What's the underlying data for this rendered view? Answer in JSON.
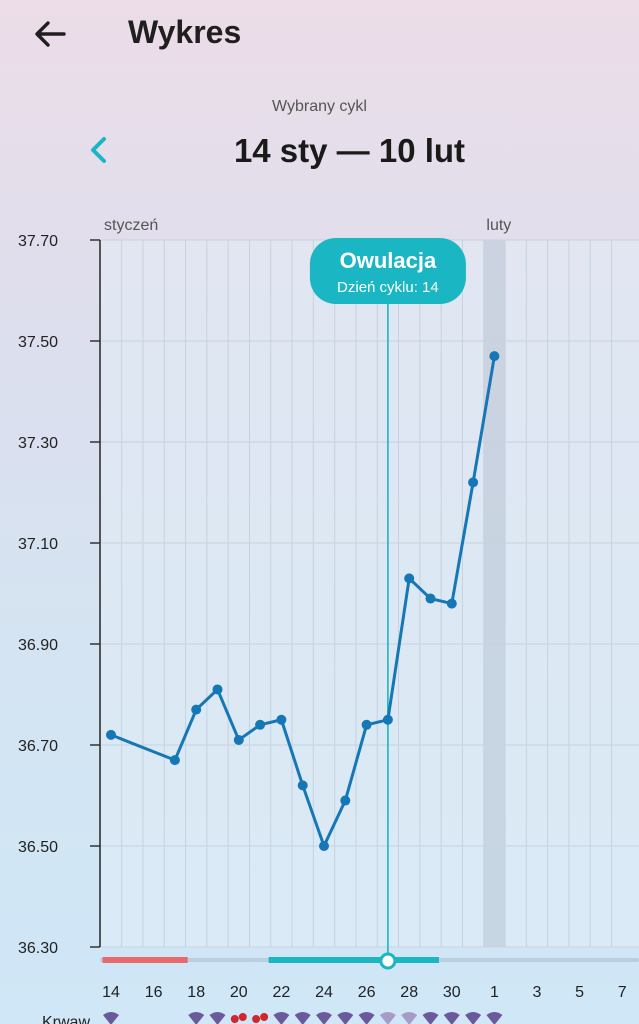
{
  "header": {
    "title": "Wykres",
    "back_icon": "arrow-left-icon"
  },
  "cycle": {
    "label": "Wybrany cykl",
    "range": "14 sty — 10 lut",
    "prev_icon": "chevron-left-icon",
    "accent": "#1ab6c4"
  },
  "legend_partial": {
    "label": "Krwaw."
  },
  "chart_data": {
    "type": "line",
    "title": "",
    "ylabel": "",
    "ylim": [
      36.3,
      37.7
    ],
    "y_ticks": [
      "37.70",
      "37.50",
      "37.30",
      "37.10",
      "36.90",
      "36.70",
      "36.50",
      "36.30"
    ],
    "month_labels": [
      {
        "text": "styczeń",
        "day": 14
      },
      {
        "text": "luty",
        "day": 32
      }
    ],
    "x_tick_labels": [
      "14",
      "16",
      "18",
      "20",
      "22",
      "24",
      "26",
      "28",
      "30",
      "1",
      "3",
      "5",
      "7"
    ],
    "series": [
      {
        "color": "#1577b5",
        "points": [
          {
            "day": 14,
            "temp": 36.72
          },
          {
            "day": 17,
            "temp": 36.67
          },
          {
            "day": 18,
            "temp": 36.77
          },
          {
            "day": 19,
            "temp": 36.81
          },
          {
            "day": 20,
            "temp": 36.71
          },
          {
            "day": 21,
            "temp": 36.74
          },
          {
            "day": 22,
            "temp": 36.75
          },
          {
            "day": 23,
            "temp": 36.62
          },
          {
            "day": 24,
            "temp": 36.5
          },
          {
            "day": 25,
            "temp": 36.59
          },
          {
            "day": 26,
            "temp": 36.74
          },
          {
            "day": 27,
            "temp": 36.75
          },
          {
            "day": 28,
            "temp": 37.03
          },
          {
            "day": 29,
            "temp": 36.99
          },
          {
            "day": 30,
            "temp": 36.98
          },
          {
            "day": 31,
            "temp": 37.22
          },
          {
            "day": 32,
            "temp": 37.47
          }
        ]
      }
    ],
    "ovulation": {
      "day": 27,
      "title": "Owulacja",
      "subtitle": "Dzień cyklu: 14",
      "color": "#1ab6c4"
    },
    "highlight_day": 32,
    "bars": [
      {
        "kind": "period",
        "from": 13.6,
        "to": 17.6,
        "color": "#e96a6e"
      },
      {
        "kind": "fertile",
        "from": 21.4,
        "to": 29.4,
        "color": "#1ab6c4"
      }
    ]
  },
  "symbols": {
    "drop_color": "#6a5a9a",
    "red_color": "#d2252c",
    "row": [
      {
        "day": 14,
        "kind": "drop"
      },
      {
        "day": 18,
        "kind": "drop"
      },
      {
        "day": 19,
        "kind": "drop"
      },
      {
        "day": 20,
        "kind": "red"
      },
      {
        "day": 21,
        "kind": "red"
      },
      {
        "day": 22,
        "kind": "drop"
      },
      {
        "day": 23,
        "kind": "drop"
      },
      {
        "day": 24,
        "kind": "drop"
      },
      {
        "day": 25,
        "kind": "drop"
      },
      {
        "day": 26,
        "kind": "drop"
      },
      {
        "day": 27,
        "kind": "light"
      },
      {
        "day": 28,
        "kind": "light"
      },
      {
        "day": 29,
        "kind": "drop"
      },
      {
        "day": 30,
        "kind": "drop"
      },
      {
        "day": 31,
        "kind": "drop"
      },
      {
        "day": 32,
        "kind": "drop"
      }
    ]
  }
}
